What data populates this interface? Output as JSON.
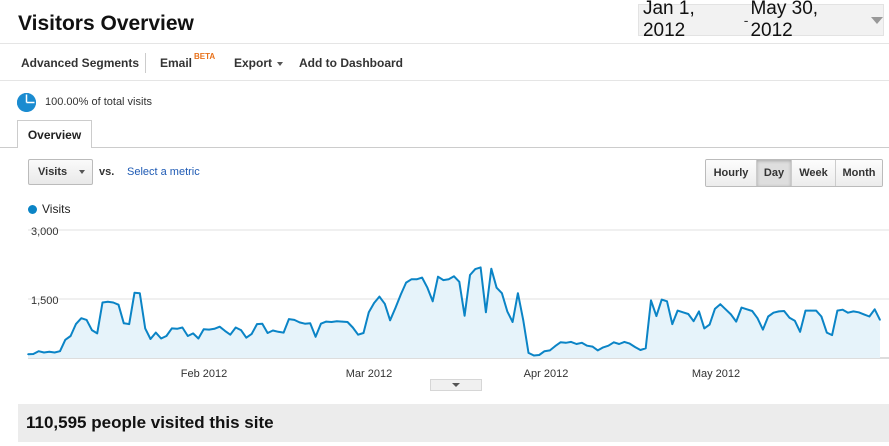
{
  "header": {
    "title": "Visitors Overview"
  },
  "daterange": {
    "start": "Jan 1, 2012",
    "sep": "-",
    "end": "May 30, 2012"
  },
  "toolbar": {
    "advanced_segments": "Advanced Segments",
    "email": "Email",
    "beta": "BETA",
    "export": "Export",
    "add_to_dashboard": "Add to Dashboard"
  },
  "segment": {
    "text": "100.00% of total visits"
  },
  "tabs": {
    "overview": "Overview"
  },
  "controls": {
    "metric": "Visits",
    "vs": "vs.",
    "select_metric": "Select a metric",
    "granularity": [
      "Hourly",
      "Day",
      "Week",
      "Month"
    ],
    "active": "Day"
  },
  "summary": {
    "text": "110,595 people visited this site"
  },
  "chart_data": {
    "type": "area",
    "series": [
      {
        "name": "Visits",
        "color": "#0b84c6",
        "values": [
          90,
          95,
          160,
          130,
          150,
          130,
          160,
          430,
          520,
          800,
          940,
          900,
          660,
          580,
          1310,
          1330,
          1310,
          1260,
          820,
          800,
          1540,
          1530,
          700,
          450,
          600,
          460,
          520,
          700,
          690,
          720,
          520,
          580,
          460,
          680,
          670,
          690,
          740,
          640,
          550,
          720,
          660,
          480,
          570,
          800,
          810,
          590,
          650,
          620,
          600,
          920,
          900,
          840,
          810,
          820,
          500,
          810,
          860,
          850,
          870,
          860,
          850,
          720,
          550,
          590,
          1080,
          1300,
          1450,
          1280,
          890,
          1180,
          1500,
          1780,
          1860,
          1860,
          1900,
          1660,
          1340,
          1920,
          1840,
          1860,
          1930,
          1800,
          1000,
          1960,
          2100,
          2140,
          1080,
          2110,
          1660,
          1530,
          1100,
          850,
          1530,
          900,
          120,
          60,
          70,
          160,
          180,
          280,
          370,
          360,
          380,
          330,
          360,
          290,
          270,
          180,
          250,
          290,
          370,
          330,
          380,
          340,
          260,
          190,
          230,
          1360,
          990,
          1380,
          1340,
          800,
          1120,
          1080,
          1040,
          870,
          1100,
          700,
          790,
          1160,
          1270,
          1150,
          1030,
          860,
          1190,
          1150,
          1110,
          940,
          670,
          980,
          1070,
          1100,
          1110,
          950,
          880,
          620,
          1120,
          1120,
          1120,
          980,
          600,
          540,
          1120,
          1140,
          1070,
          1100,
          1080,
          1030,
          980,
          1150,
          900
        ]
      }
    ],
    "x_start": "2012-01-01",
    "x_end": "2012-05-30",
    "x_tick_labels": [
      "Feb 2012",
      "Mar 2012",
      "Apr 2012",
      "May 2012"
    ],
    "y_tick_labels": [
      "3,000",
      "1,500"
    ],
    "ylim": [
      0,
      3000
    ],
    "grid": true,
    "legend": "top-left"
  }
}
